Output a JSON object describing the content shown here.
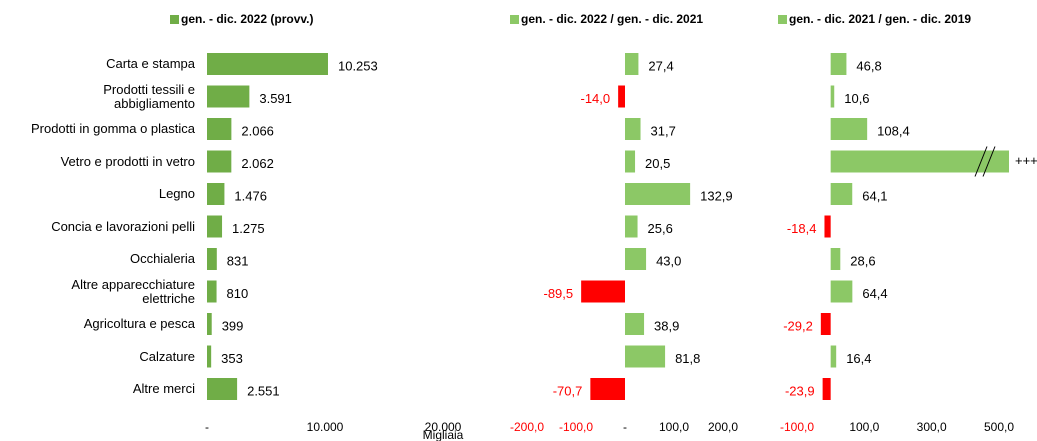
{
  "chart_data": [
    {
      "type": "bar",
      "categories": [
        "Carta e stampa",
        "Prodotti tessili e\nabbigliamento",
        "Prodotti in gomma o plastica",
        "Vetro e prodotti in vetro",
        "Legno",
        "Concia e lavorazioni pelli",
        "Occhialeria",
        "Altre apparecchiature\nelettriche",
        "Agricoltura e pesca",
        "Calzature",
        "Altre merci"
      ],
      "series": [
        {
          "name": "gen. - dic. 2022 (provv.)",
          "color": "#70ad47",
          "values": [
            10253,
            3591,
            2066,
            2062,
            1476,
            1275,
            831,
            810,
            399,
            353,
            2551
          ],
          "value_labels": [
            "10.253",
            "3.591",
            "2.066",
            "2.062",
            "1.476",
            "1.275",
            "831",
            "810",
            "399",
            "353",
            "2.551"
          ]
        }
      ],
      "xlim": [
        0,
        20000
      ],
      "xticks": [
        {
          "value": 0,
          "label": "-"
        },
        {
          "value": 10000,
          "label": "10.000"
        },
        {
          "value": 20000,
          "label": "20.000"
        }
      ],
      "xlabel": "Migliaia"
    },
    {
      "type": "bar",
      "series": [
        {
          "name": "gen. - dic. 2022 / gen. - dic. 2021",
          "color": "#8cc866",
          "negative_color": "#ff0000",
          "values": [
            27.4,
            -14.0,
            31.7,
            20.5,
            132.9,
            25.6,
            43.0,
            -89.5,
            38.9,
            81.8,
            -70.7
          ],
          "value_labels": [
            "27,4",
            "-14,0",
            "31,7",
            "20,5",
            "132,9",
            "25,6",
            "43,0",
            "-89,5",
            "38,9",
            "81,8",
            "-70,7"
          ]
        }
      ],
      "xlim": [
        -200,
        200
      ],
      "xticks": [
        {
          "value": -200,
          "label": "-200,0"
        },
        {
          "value": -100,
          "label": "-100,0"
        },
        {
          "value": 0,
          "label": "-"
        },
        {
          "value": 100,
          "label": "100,0"
        },
        {
          "value": 200,
          "label": "200,0"
        }
      ]
    },
    {
      "type": "bar",
      "series": [
        {
          "name": "gen. - dic. 2021 / gen. - dic. 2019",
          "color": "#8cc866",
          "negative_color": "#ff0000",
          "values": [
            46.8,
            10.6,
            108.4,
            null,
            64.1,
            -18.4,
            28.6,
            64.4,
            -29.2,
            16.4,
            -23.9
          ],
          "value_labels": [
            "46,8",
            "10,6",
            "108,4",
            "+++",
            "64,1",
            "-18,4",
            "28,6",
            "64,4",
            "-29,2",
            "16,4",
            "-23,9"
          ]
        }
      ],
      "xlim": [
        -100,
        500
      ],
      "xticks": [
        {
          "value": -100,
          "label": "-100,0"
        },
        {
          "value": 100,
          "label": "100,0"
        },
        {
          "value": 300,
          "label": "300,0"
        },
        {
          "value": 500,
          "label": "500,0"
        }
      ]
    }
  ]
}
